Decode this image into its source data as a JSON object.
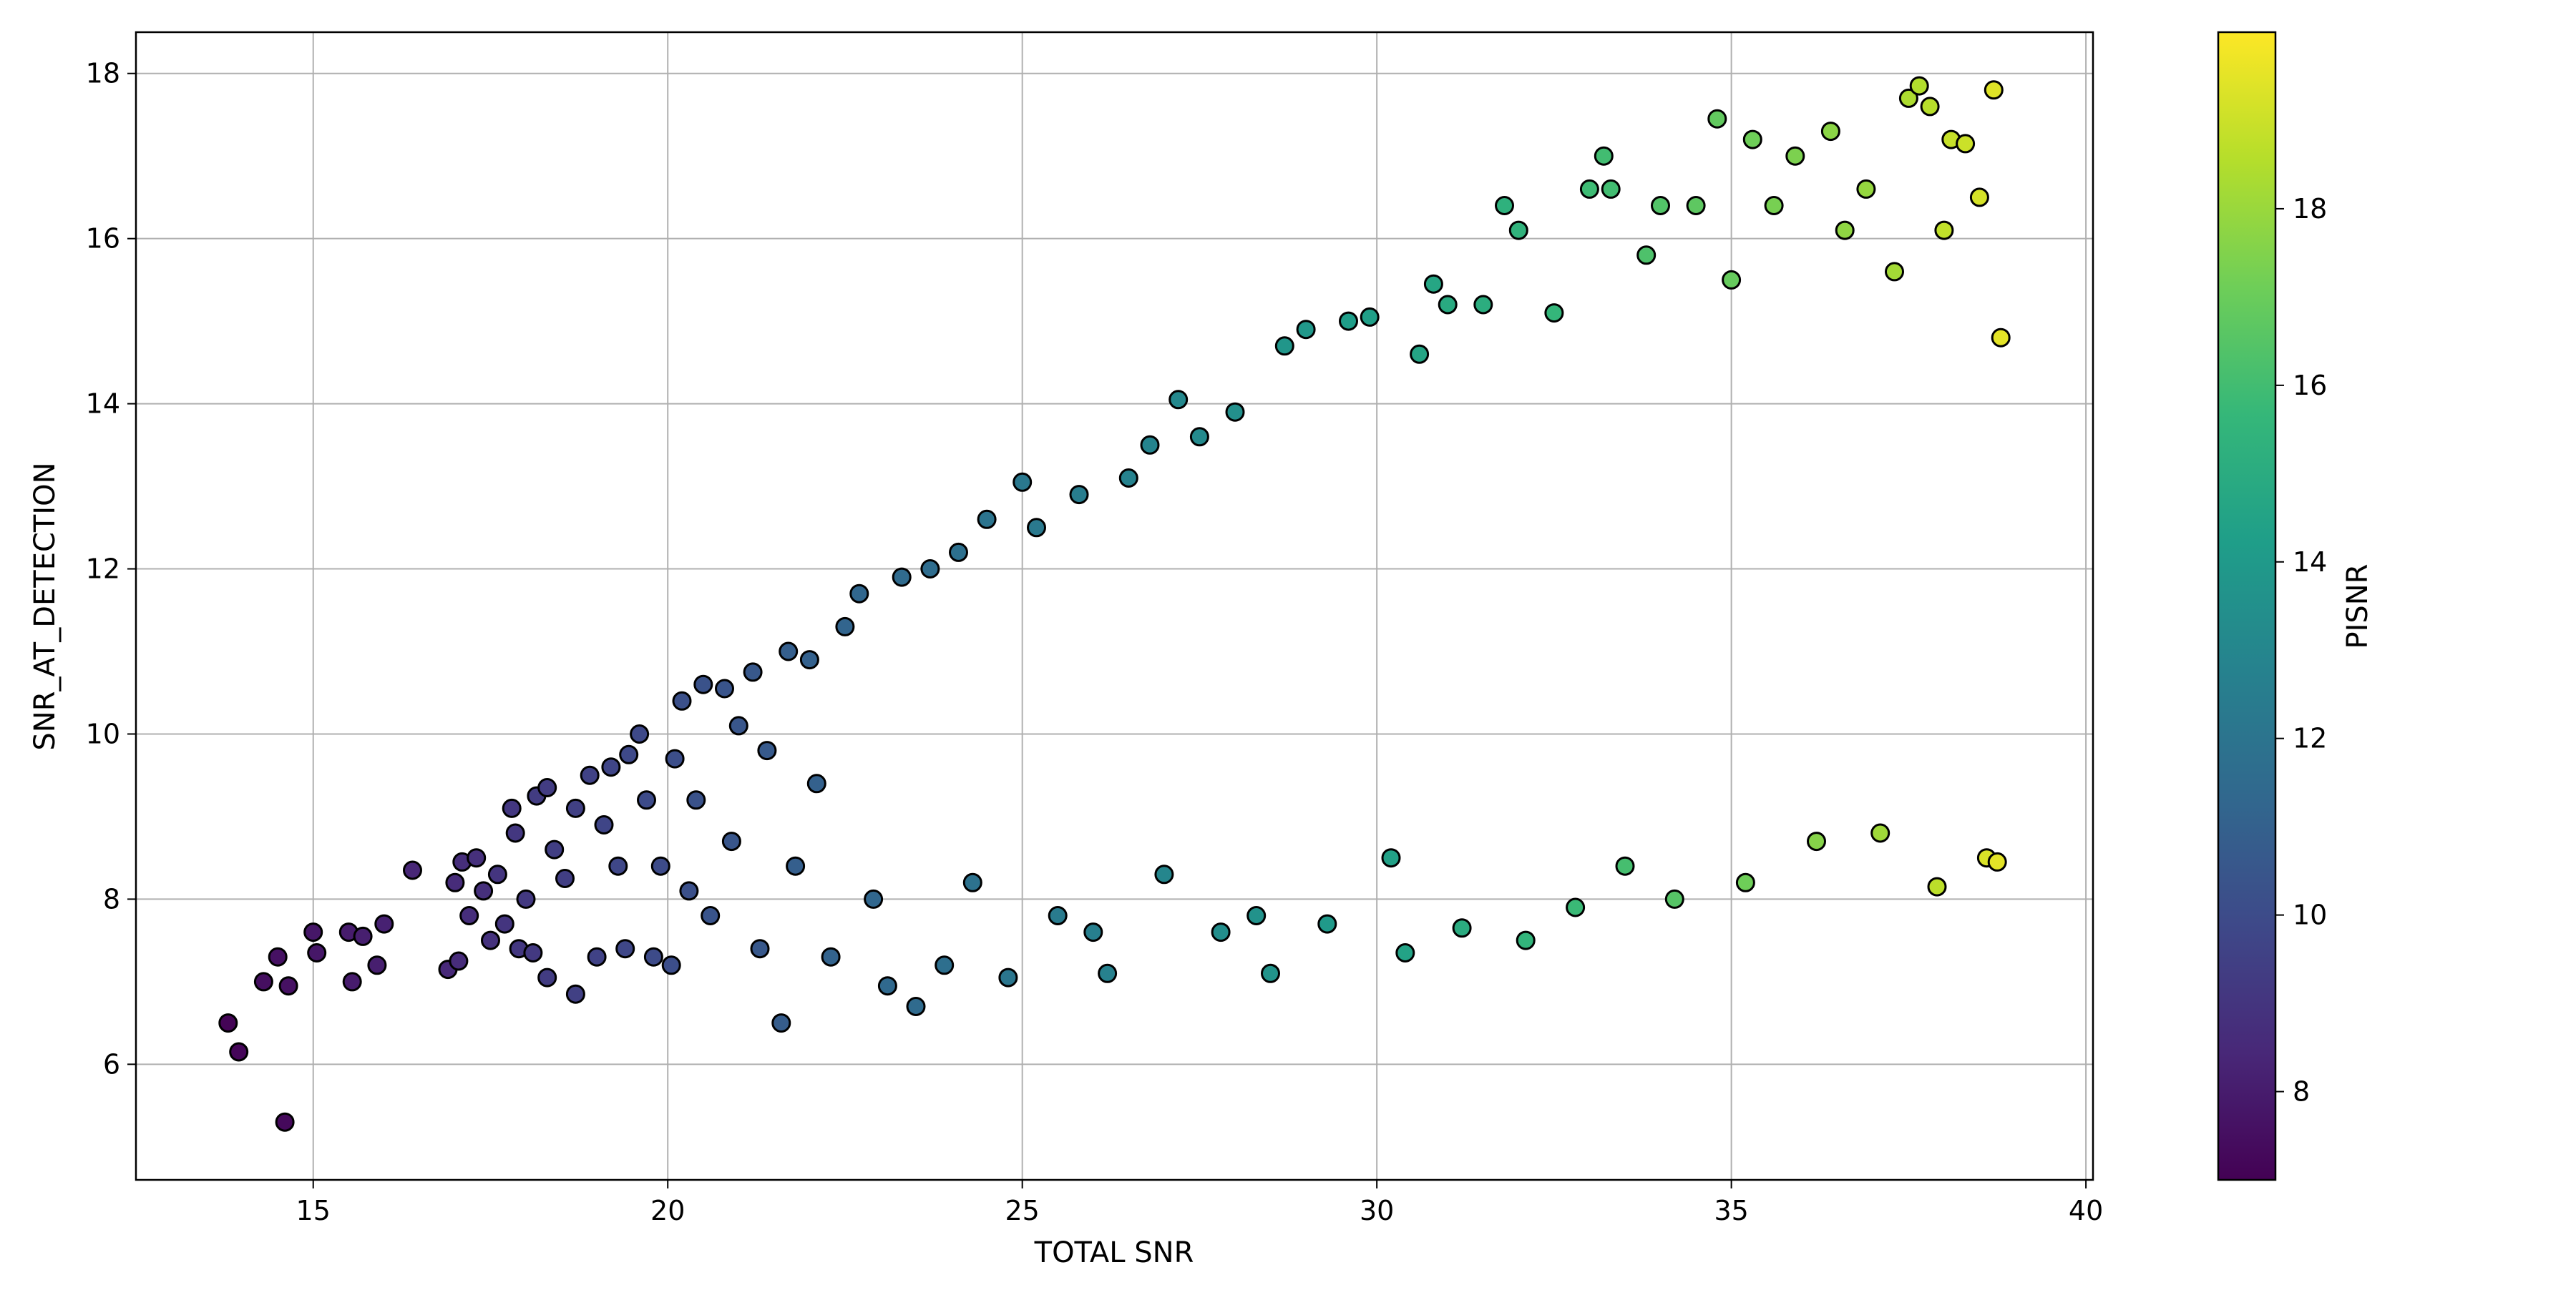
{
  "chart_data": {
    "type": "scatter",
    "xlabel": "TOTAL SNR",
    "ylabel": "SNR_AT_DETECTION",
    "xlim": [
      12.5,
      40.1
    ],
    "ylim": [
      4.6,
      18.5
    ],
    "xticks": [
      15,
      20,
      25,
      30,
      35,
      40
    ],
    "yticks": [
      6,
      8,
      10,
      12,
      14,
      16,
      18
    ],
    "grid": true,
    "marker": {
      "shape": "circle",
      "edgecolor": "#000000"
    },
    "colorbar": {
      "label": "PISNR",
      "cmap": "viridis",
      "range": [
        7.0,
        20.0
      ],
      "ticks": [
        8,
        10,
        12,
        14,
        16,
        18
      ]
    },
    "viridis_stops": [
      "#440154",
      "#482878",
      "#3e4989",
      "#31688e",
      "#26828e",
      "#1f9e89",
      "#35b779",
      "#6ece58",
      "#b5de2b",
      "#fde725"
    ],
    "points": [
      [
        13.8,
        6.5,
        7.1
      ],
      [
        13.95,
        6.15,
        7.2
      ],
      [
        14.6,
        5.3,
        7.3
      ],
      [
        14.5,
        7.3,
        7.6
      ],
      [
        14.3,
        7.0,
        7.5
      ],
      [
        14.65,
        6.95,
        7.6
      ],
      [
        15.0,
        7.6,
        7.8
      ],
      [
        15.05,
        7.35,
        7.8
      ],
      [
        15.5,
        7.6,
        8.0
      ],
      [
        15.55,
        7.0,
        8.0
      ],
      [
        15.7,
        7.55,
        8.1
      ],
      [
        15.9,
        7.2,
        8.1
      ],
      [
        16.0,
        7.7,
        8.2
      ],
      [
        16.4,
        8.35,
        8.4
      ],
      [
        16.9,
        7.15,
        8.5
      ],
      [
        17.0,
        8.2,
        8.6
      ],
      [
        17.1,
        8.45,
        8.7
      ],
      [
        17.05,
        7.25,
        8.6
      ],
      [
        17.2,
        7.8,
        8.7
      ],
      [
        17.3,
        8.5,
        8.8
      ],
      [
        17.4,
        8.1,
        8.8
      ],
      [
        17.5,
        7.5,
        8.9
      ],
      [
        17.6,
        8.3,
        9.0
      ],
      [
        17.7,
        7.7,
        9.0
      ],
      [
        17.8,
        9.1,
        9.1
      ],
      [
        17.85,
        8.8,
        9.1
      ],
      [
        17.9,
        7.4,
        9.1
      ],
      [
        18.0,
        8.0,
        9.2
      ],
      [
        18.1,
        7.35,
        9.2
      ],
      [
        18.15,
        9.25,
        9.3
      ],
      [
        18.3,
        9.35,
        9.3
      ],
      [
        18.3,
        7.05,
        9.3
      ],
      [
        18.4,
        8.6,
        9.4
      ],
      [
        18.55,
        8.25,
        9.4
      ],
      [
        18.7,
        6.85,
        9.5
      ],
      [
        18.7,
        9.1,
        9.5
      ],
      [
        18.9,
        9.5,
        9.6
      ],
      [
        19.0,
        7.3,
        9.6
      ],
      [
        19.1,
        8.9,
        9.7
      ],
      [
        19.2,
        9.6,
        9.7
      ],
      [
        19.3,
        8.4,
        9.8
      ],
      [
        19.4,
        7.4,
        9.8
      ],
      [
        19.45,
        9.75,
        9.9
      ],
      [
        19.6,
        10.0,
        9.9
      ],
      [
        19.7,
        9.2,
        10.0
      ],
      [
        19.8,
        7.3,
        10.0
      ],
      [
        19.9,
        8.4,
        10.0
      ],
      [
        20.05,
        7.2,
        10.1
      ],
      [
        20.1,
        9.7,
        10.1
      ],
      [
        20.2,
        10.4,
        10.2
      ],
      [
        20.3,
        8.1,
        10.2
      ],
      [
        20.4,
        9.2,
        10.3
      ],
      [
        20.5,
        10.6,
        10.3
      ],
      [
        20.6,
        7.8,
        10.4
      ],
      [
        20.8,
        10.55,
        10.4
      ],
      [
        20.9,
        8.7,
        10.5
      ],
      [
        21.0,
        10.1,
        10.5
      ],
      [
        21.2,
        10.75,
        10.6
      ],
      [
        21.3,
        7.4,
        10.6
      ],
      [
        21.4,
        9.8,
        10.7
      ],
      [
        21.6,
        6.5,
        10.8
      ],
      [
        21.7,
        11.0,
        10.9
      ],
      [
        21.8,
        8.4,
        10.9
      ],
      [
        22.0,
        10.9,
        11.0
      ],
      [
        22.1,
        9.4,
        11.0
      ],
      [
        22.3,
        7.3,
        11.1
      ],
      [
        22.5,
        11.3,
        11.2
      ],
      [
        22.7,
        11.7,
        11.3
      ],
      [
        22.9,
        8.0,
        11.3
      ],
      [
        23.1,
        6.95,
        11.4
      ],
      [
        23.3,
        11.9,
        11.5
      ],
      [
        23.5,
        6.7,
        11.5
      ],
      [
        23.7,
        12.0,
        11.6
      ],
      [
        23.9,
        7.2,
        11.7
      ],
      [
        24.1,
        12.2,
        11.8
      ],
      [
        24.3,
        8.2,
        11.9
      ],
      [
        24.5,
        12.6,
        12.0
      ],
      [
        24.8,
        7.05,
        12.1
      ],
      [
        25.0,
        13.05,
        12.2
      ],
      [
        25.2,
        12.5,
        12.3
      ],
      [
        25.5,
        7.8,
        12.4
      ],
      [
        25.8,
        12.9,
        12.5
      ],
      [
        26.0,
        7.6,
        12.6
      ],
      [
        26.2,
        7.1,
        12.7
      ],
      [
        26.5,
        13.1,
        12.8
      ],
      [
        26.8,
        13.5,
        12.9
      ],
      [
        27.0,
        8.3,
        13.0
      ],
      [
        27.2,
        14.05,
        13.1
      ],
      [
        27.5,
        13.6,
        13.2
      ],
      [
        27.8,
        7.6,
        13.4
      ],
      [
        28.0,
        13.9,
        13.5
      ],
      [
        28.3,
        7.8,
        13.6
      ],
      [
        28.5,
        7.1,
        13.7
      ],
      [
        28.7,
        14.7,
        13.8
      ],
      [
        29.0,
        14.9,
        13.9
      ],
      [
        29.3,
        7.7,
        14.0
      ],
      [
        29.6,
        15.0,
        14.2
      ],
      [
        29.9,
        15.05,
        14.3
      ],
      [
        30.2,
        8.5,
        14.4
      ],
      [
        30.4,
        7.35,
        14.5
      ],
      [
        30.6,
        14.6,
        14.6
      ],
      [
        30.8,
        15.45,
        14.7
      ],
      [
        31.0,
        15.2,
        14.9
      ],
      [
        31.2,
        7.65,
        15.0
      ],
      [
        31.5,
        15.2,
        15.1
      ],
      [
        31.8,
        16.4,
        15.3
      ],
      [
        32.0,
        16.1,
        15.4
      ],
      [
        32.1,
        7.5,
        15.5
      ],
      [
        32.5,
        15.1,
        15.6
      ],
      [
        32.8,
        7.9,
        15.8
      ],
      [
        33.0,
        16.6,
        15.9
      ],
      [
        33.2,
        17.0,
        16.0
      ],
      [
        33.3,
        16.6,
        16.0
      ],
      [
        33.5,
        8.4,
        16.1
      ],
      [
        33.8,
        15.8,
        16.3
      ],
      [
        34.0,
        16.4,
        16.4
      ],
      [
        34.2,
        8.0,
        16.5
      ],
      [
        34.5,
        16.4,
        16.7
      ],
      [
        34.8,
        17.45,
        16.8
      ],
      [
        35.0,
        15.5,
        16.9
      ],
      [
        35.2,
        8.2,
        17.1
      ],
      [
        35.3,
        17.2,
        17.1
      ],
      [
        35.6,
        16.4,
        17.3
      ],
      [
        35.9,
        17.0,
        17.4
      ],
      [
        36.2,
        8.7,
        17.6
      ],
      [
        36.4,
        17.3,
        17.7
      ],
      [
        36.6,
        16.1,
        17.8
      ],
      [
        36.9,
        16.6,
        17.9
      ],
      [
        37.1,
        8.8,
        18.1
      ],
      [
        37.3,
        15.6,
        18.2
      ],
      [
        37.5,
        17.7,
        18.4
      ],
      [
        37.65,
        17.85,
        18.5
      ],
      [
        37.8,
        17.6,
        18.6
      ],
      [
        37.9,
        8.15,
        18.7
      ],
      [
        38.0,
        16.1,
        18.8
      ],
      [
        38.1,
        17.2,
        18.9
      ],
      [
        38.3,
        17.15,
        19.0
      ],
      [
        38.5,
        16.5,
        19.2
      ],
      [
        38.6,
        8.5,
        19.3
      ],
      [
        38.7,
        17.8,
        19.4
      ],
      [
        38.75,
        8.45,
        19.5
      ],
      [
        38.8,
        14.8,
        19.5
      ]
    ]
  }
}
